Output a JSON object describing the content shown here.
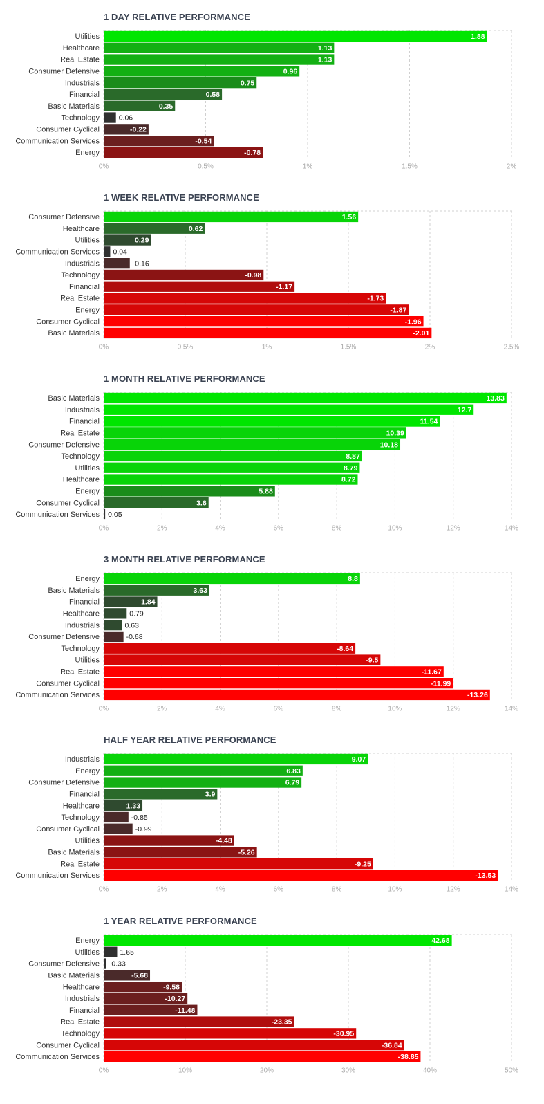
{
  "chart_data": [
    {
      "type": "bar",
      "orientation": "horizontal",
      "title": "1 DAY RELATIVE PERFORMANCE",
      "categories": [
        "Utilities",
        "Healthcare",
        "Real Estate",
        "Consumer Defensive",
        "Industrials",
        "Financial",
        "Basic Materials",
        "Technology",
        "Consumer Cyclical",
        "Communication Services",
        "Energy"
      ],
      "values": [
        1.88,
        1.13,
        1.13,
        0.96,
        0.75,
        0.58,
        0.35,
        0.06,
        -0.22,
        -0.54,
        -0.78
      ],
      "value_labels": [
        "1.88",
        "1.13",
        "1.13",
        "0.96",
        "0.75",
        "0.58",
        "0.35",
        "0.06",
        "-0.22",
        "-0.54",
        "-0.78"
      ],
      "xlim": [
        0,
        2
      ],
      "ticks": [
        0,
        0.5,
        1,
        1.5,
        2
      ],
      "tick_labels": [
        "0%",
        "0.5%",
        "1%",
        "1.5%",
        "2%"
      ],
      "xlabel": "",
      "ylabel": "",
      "grid": true
    },
    {
      "type": "bar",
      "orientation": "horizontal",
      "title": "1 WEEK RELATIVE PERFORMANCE",
      "categories": [
        "Consumer Defensive",
        "Healthcare",
        "Utilities",
        "Communication Services",
        "Industrials",
        "Technology",
        "Financial",
        "Real Estate",
        "Energy",
        "Consumer Cyclical",
        "Basic Materials"
      ],
      "values": [
        1.56,
        0.62,
        0.29,
        0.04,
        -0.16,
        -0.98,
        -1.17,
        -1.73,
        -1.87,
        -1.96,
        -2.01
      ],
      "value_labels": [
        "1.56",
        "0.62",
        "0.29",
        "0.04",
        "-0.16",
        "-0.98",
        "-1.17",
        "-1.73",
        "-1.87",
        "-1.96",
        "-2.01"
      ],
      "xlim": [
        0,
        2.5
      ],
      "ticks": [
        0,
        0.5,
        1,
        1.5,
        2,
        2.5
      ],
      "tick_labels": [
        "0%",
        "0.5%",
        "1%",
        "1.5%",
        "2%",
        "2.5%"
      ],
      "xlabel": "",
      "ylabel": "",
      "grid": true
    },
    {
      "type": "bar",
      "orientation": "horizontal",
      "title": "1 MONTH RELATIVE PERFORMANCE",
      "categories": [
        "Basic Materials",
        "Industrials",
        "Financial",
        "Real Estate",
        "Consumer Defensive",
        "Technology",
        "Utilities",
        "Healthcare",
        "Energy",
        "Consumer Cyclical",
        "Communication Services"
      ],
      "values": [
        13.83,
        12.7,
        11.54,
        10.39,
        10.18,
        8.87,
        8.79,
        8.72,
        5.88,
        3.6,
        0.05
      ],
      "value_labels": [
        "13.83",
        "12.7",
        "11.54",
        "10.39",
        "10.18",
        "8.87",
        "8.79",
        "8.72",
        "5.88",
        "3.6",
        "0.05"
      ],
      "xlim": [
        0,
        14
      ],
      "ticks": [
        0,
        2,
        4,
        6,
        8,
        10,
        12,
        14
      ],
      "tick_labels": [
        "0%",
        "2%",
        "4%",
        "6%",
        "8%",
        "10%",
        "12%",
        "14%"
      ],
      "xlabel": "",
      "ylabel": "",
      "grid": true
    },
    {
      "type": "bar",
      "orientation": "horizontal",
      "title": "3 MONTH RELATIVE PERFORMANCE",
      "categories": [
        "Energy",
        "Basic Materials",
        "Financial",
        "Healthcare",
        "Industrials",
        "Consumer Defensive",
        "Technology",
        "Utilities",
        "Real Estate",
        "Consumer Cyclical",
        "Communication Services"
      ],
      "values": [
        8.8,
        3.63,
        1.84,
        0.79,
        0.63,
        -0.68,
        -8.64,
        -9.5,
        -11.67,
        -11.99,
        -13.26
      ],
      "value_labels": [
        "8.8",
        "3.63",
        "1.84",
        "0.79",
        "0.63",
        "-0.68",
        "-8.64",
        "-9.5",
        "-11.67",
        "-11.99",
        "-13.26"
      ],
      "xlim": [
        0,
        14
      ],
      "ticks": [
        0,
        2,
        4,
        6,
        8,
        10,
        12,
        14
      ],
      "tick_labels": [
        "0%",
        "2%",
        "4%",
        "6%",
        "8%",
        "10%",
        "12%",
        "14%"
      ],
      "xlabel": "",
      "ylabel": "",
      "grid": true
    },
    {
      "type": "bar",
      "orientation": "horizontal",
      "title": "HALF YEAR RELATIVE PERFORMANCE",
      "categories": [
        "Industrials",
        "Energy",
        "Consumer Defensive",
        "Financial",
        "Healthcare",
        "Technology",
        "Consumer Cyclical",
        "Utilities",
        "Basic Materials",
        "Real Estate",
        "Communication Services"
      ],
      "values": [
        9.07,
        6.83,
        6.79,
        3.9,
        1.33,
        -0.85,
        -0.99,
        -4.48,
        -5.26,
        -9.25,
        -13.53
      ],
      "value_labels": [
        "9.07",
        "6.83",
        "6.79",
        "3.9",
        "1.33",
        "-0.85",
        "-0.99",
        "-4.48",
        "-5.26",
        "-9.25",
        "-13.53"
      ],
      "xlim": [
        0,
        14
      ],
      "ticks": [
        0,
        2,
        4,
        6,
        8,
        10,
        12,
        14
      ],
      "tick_labels": [
        "0%",
        "2%",
        "4%",
        "6%",
        "8%",
        "10%",
        "12%",
        "14%"
      ],
      "xlabel": "",
      "ylabel": "",
      "grid": true
    },
    {
      "type": "bar",
      "orientation": "horizontal",
      "title": "1 YEAR RELATIVE PERFORMANCE",
      "categories": [
        "Energy",
        "Utilities",
        "Consumer Defensive",
        "Basic Materials",
        "Healthcare",
        "Industrials",
        "Financial",
        "Real Estate",
        "Technology",
        "Consumer Cyclical",
        "Communication Services"
      ],
      "values": [
        42.68,
        1.65,
        -0.33,
        -5.68,
        -9.58,
        -10.27,
        -11.48,
        -23.35,
        -30.95,
        -36.84,
        -38.85
      ],
      "value_labels": [
        "42.68",
        "1.65",
        "-0.33",
        "-5.68",
        "-9.58",
        "-10.27",
        "-11.48",
        "-23.35",
        "-30.95",
        "-36.84",
        "-38.85"
      ],
      "xlim": [
        0,
        50
      ],
      "ticks": [
        0,
        10,
        20,
        30,
        40,
        50
      ],
      "tick_labels": [
        "0%",
        "10%",
        "20%",
        "30%",
        "40%",
        "50%"
      ],
      "xlabel": "",
      "ylabel": "",
      "grid": true
    }
  ],
  "colors": {
    "positive_levels": [
      "#303030",
      "#2f4a2f",
      "#2a6a2a",
      "#1a8c1a",
      "#13b013",
      "#08d408",
      "#00e600"
    ],
    "negative_levels": [
      "#303030",
      "#4a2a2a",
      "#6b1f1f",
      "#8b1414",
      "#b00d0d",
      "#d60606",
      "#ff0000"
    ],
    "title": "#3b4352",
    "category_label": "#333333",
    "tick_label": "#aaaaaa",
    "grid": "#d0d0d0"
  }
}
